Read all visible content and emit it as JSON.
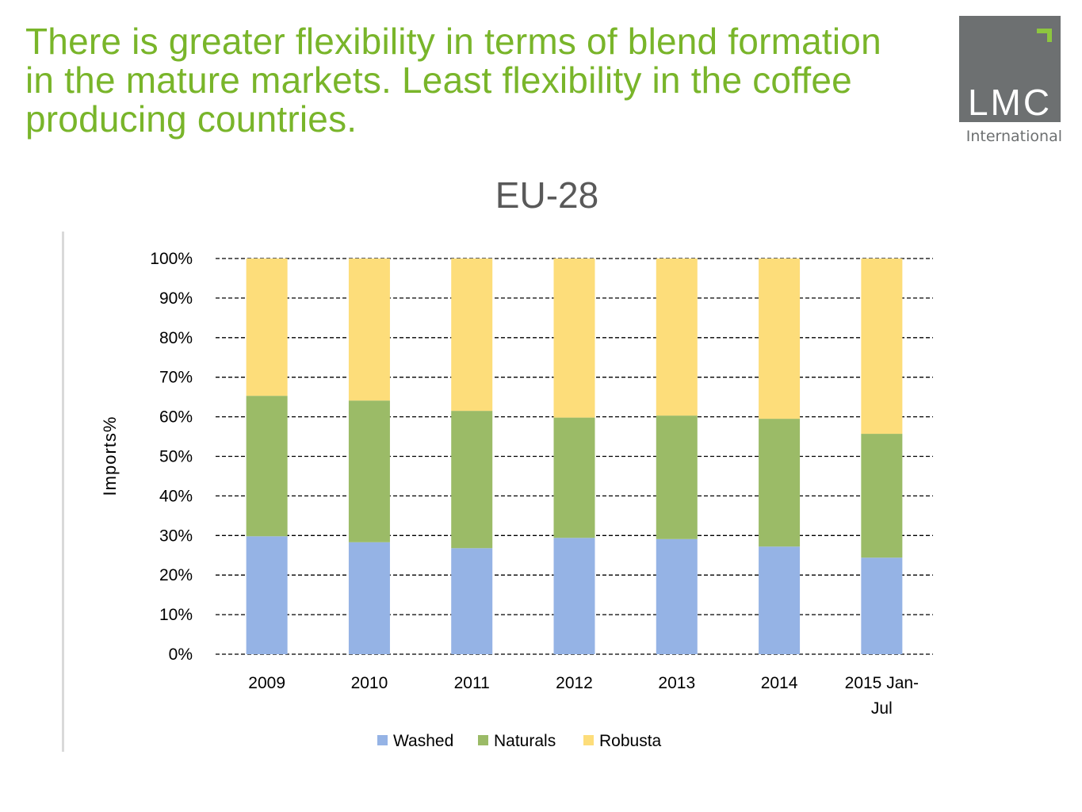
{
  "slide": {
    "headline": "There is greater flexibility in terms of blend formation in the mature markets. Least flexibility in the coffee producing countries.",
    "logo": {
      "mark": "LMC",
      "subtitle": "International",
      "accent_color": "#8dc63f",
      "background_color": "#6d7071"
    }
  },
  "chart_data": {
    "type": "bar",
    "stacked": true,
    "percent": true,
    "title": "EU-28",
    "xlabel": "",
    "ylabel": "Imports%",
    "categories": [
      "2009",
      "2010",
      "2011",
      "2012",
      "2013",
      "2014",
      "2015 Jan-Jul"
    ],
    "series": [
      {
        "name": "Washed",
        "color": "#95b3e5",
        "values": [
          29.8,
          28.3,
          26.8,
          29.4,
          29.1,
          27.2,
          24.4
        ]
      },
      {
        "name": "Naturals",
        "color": "#9bbb67",
        "values": [
          35.5,
          35.8,
          34.7,
          30.4,
          31.2,
          32.3,
          31.3
        ]
      },
      {
        "name": "Robusta",
        "color": "#fddd7a",
        "values": [
          34.7,
          35.9,
          38.5,
          40.2,
          39.7,
          40.5,
          44.3
        ]
      }
    ],
    "ylim": [
      0,
      100
    ],
    "yticks": [
      "0%",
      "10%",
      "20%",
      "30%",
      "40%",
      "50%",
      "60%",
      "70%",
      "80%",
      "90%",
      "100%"
    ],
    "grid": "dashed horizontal",
    "legend": "bottom"
  }
}
